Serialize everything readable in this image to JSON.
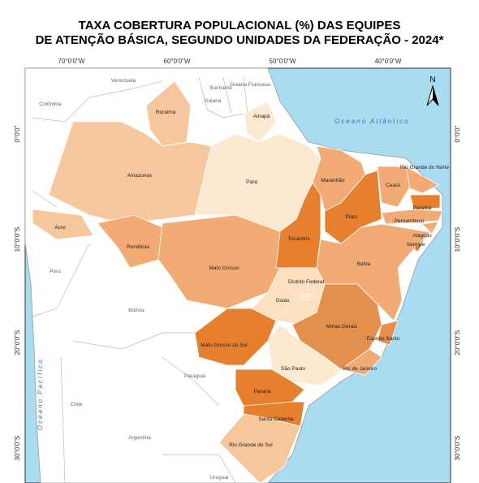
{
  "title": [
    "TAXA COBERTURA POPULACIONAL (%) DAS EQUIPES",
    "DE ATENÇÃO BÁSICA,  SEGUNDO UNIDADES DA FEDERAÇÃO - 2024*"
  ],
  "graticule": {
    "longitudes": [
      "70°0'0\"W",
      "60°0'0\"W",
      "50°0'0\"W",
      "40°0'0\"W"
    ],
    "latitudes": [
      "0°0'0\"",
      "10°0'0\"S",
      "20°0'0\"S",
      "30°0'0\"S"
    ]
  },
  "north_arrow": "N",
  "oceans": [
    "Oceano Atlântico",
    "Oceano Pacífico"
  ],
  "countries": [
    "Venezuela",
    "Colômbia",
    "Guiana",
    "Suriname",
    "Guiana Francesa",
    "Peru",
    "Bolívia",
    "Chile",
    "Paraguai",
    "Argentina",
    "Uruguai"
  ],
  "states": [
    "Roraima",
    "Amapá",
    "Amazonas",
    "Pará",
    "Acre",
    "Rondônia",
    "Mato Grosso",
    "Tocantins",
    "Maranhão",
    "Piauí",
    "Ceará",
    "Rio Grande do Norte",
    "Paraíba",
    "Pernambuco",
    "Alagoas",
    "Sergipe",
    "Bahia",
    "Distrito Federal",
    "Goiás",
    "Minas Gerais",
    "Espírito Santo",
    "Rio de Janeiro",
    "São Paulo",
    "Mato Grosso do Sul",
    "Paraná",
    "Santa Catarina",
    "Rio Grande do Sul"
  ]
}
